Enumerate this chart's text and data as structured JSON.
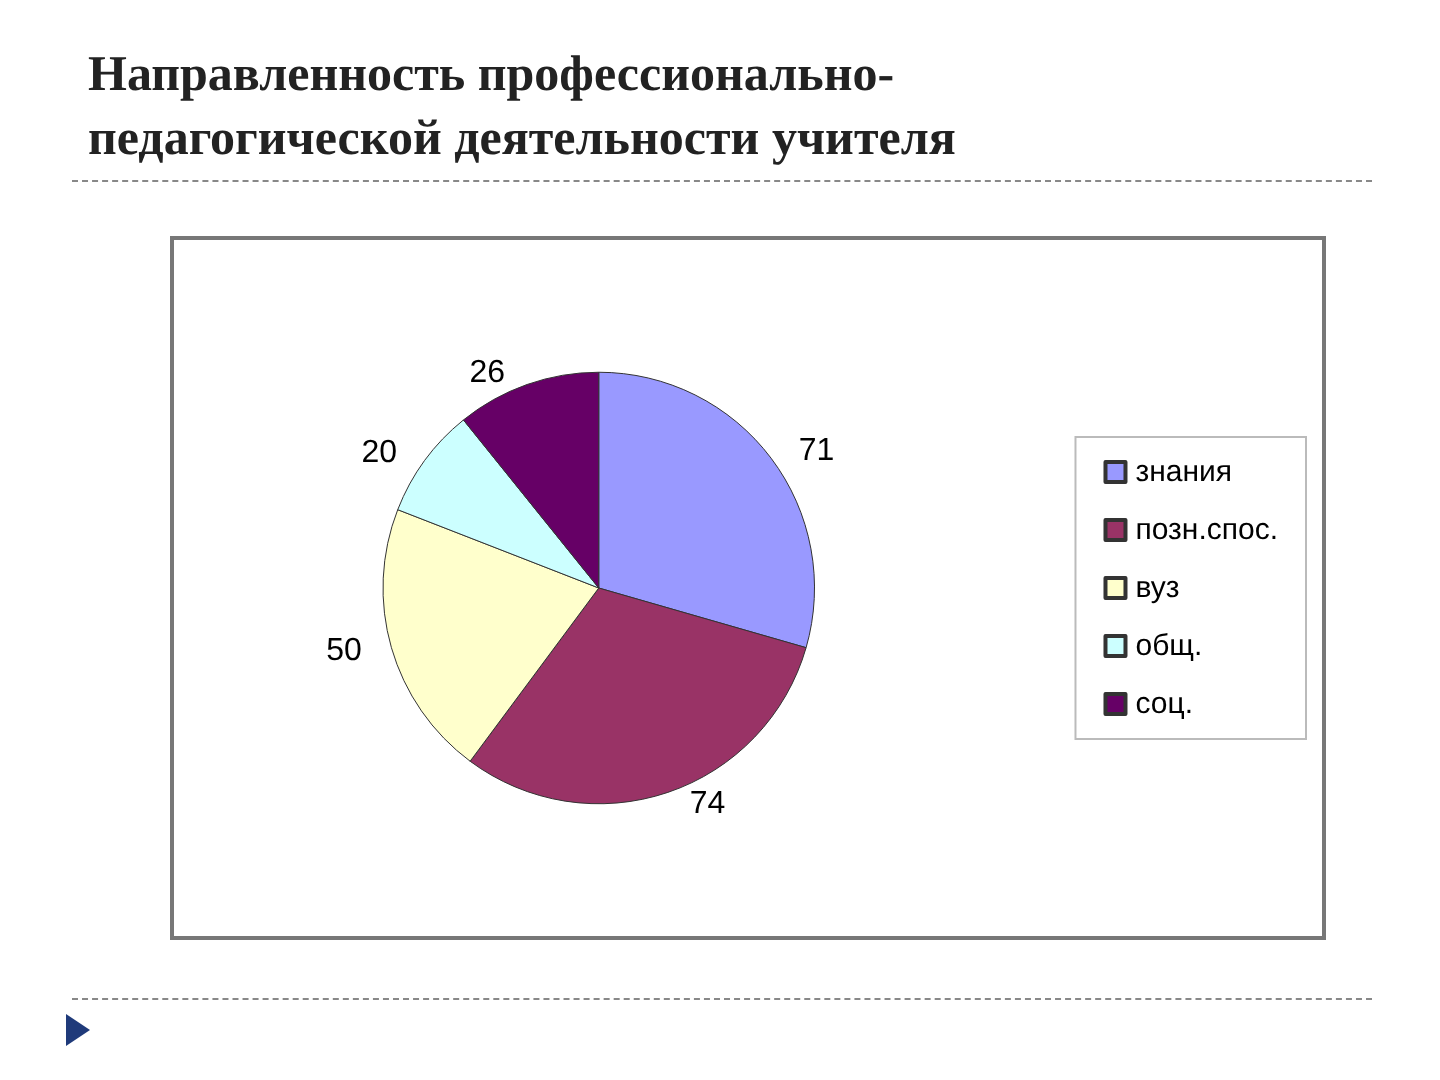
{
  "chart_data": {
    "type": "pie",
    "title": "Направленность профессионально-педагогической деятельности учителя",
    "categories": [
      "знания",
      "позн.спос.",
      "вуз",
      "общ.",
      "соц."
    ],
    "values": [
      71,
      74,
      50,
      20,
      26
    ],
    "colors": [
      "#9999ff",
      "#993366",
      "#ffffcc",
      "#ccffff",
      "#660066"
    ],
    "data_labels": true,
    "legend": "right"
  }
}
